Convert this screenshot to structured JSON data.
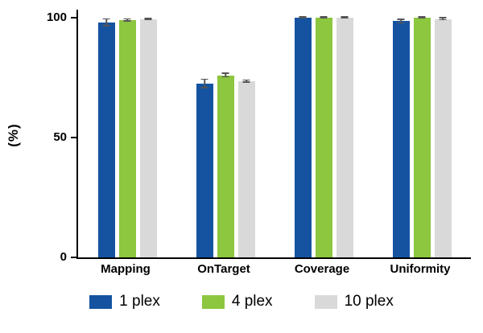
{
  "chart_data": {
    "type": "bar",
    "title": "",
    "xlabel": "",
    "ylabel": "(%)",
    "ylim": [
      0,
      100
    ],
    "yticks": [
      0,
      50,
      100
    ],
    "grid": false,
    "legend_position": "bottom",
    "categories": [
      "Mapping",
      "OnTarget",
      "Coverage",
      "Uniformity"
    ],
    "series": [
      {
        "name": "1 plex",
        "color": "#1553a1",
        "values": [
          98,
          72.5,
          100,
          98.5
        ],
        "errors": [
          1.5,
          1.8,
          0.3,
          0.8
        ]
      },
      {
        "name": "4 plex",
        "color": "#8dc63f",
        "values": [
          99,
          76,
          100,
          100
        ],
        "errors": [
          0.4,
          0.8,
          0.2,
          0.3
        ]
      },
      {
        "name": "10 plex",
        "color": "#d9d9d9",
        "values": [
          99.5,
          73.5,
          100,
          99.5
        ],
        "errors": [
          0.3,
          0.5,
          0.2,
          0.4
        ]
      }
    ]
  }
}
